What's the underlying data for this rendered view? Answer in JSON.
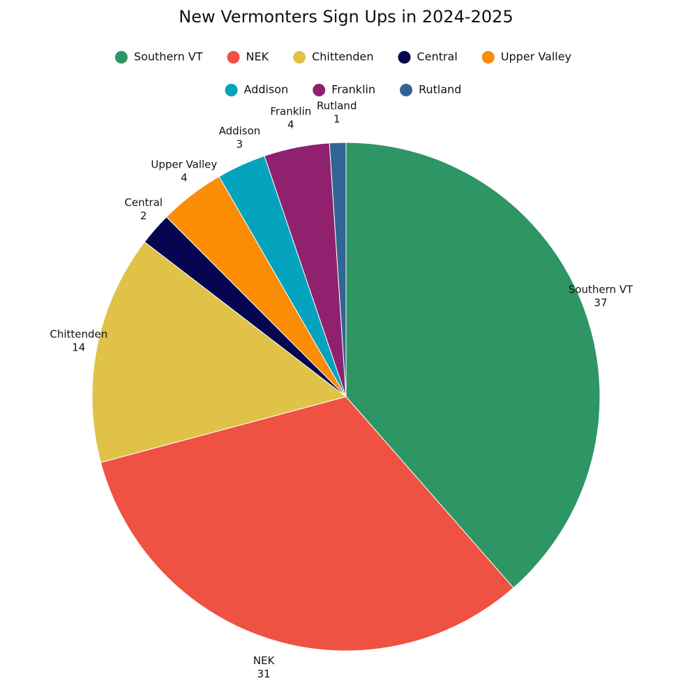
{
  "chart_data": {
    "type": "pie",
    "title": "New Vermonters Sign Ups in 2024-2025",
    "categories": [
      "Southern VT",
      "NEK",
      "Chittenden",
      "Central",
      "Upper Valley",
      "Addison",
      "Franklin",
      "Rutland"
    ],
    "values": [
      37,
      31,
      14,
      2,
      4,
      3,
      4,
      1
    ],
    "colors": [
      "#2e9565",
      "#ef5142",
      "#dfc247",
      "#05064f",
      "#fb8c06",
      "#03a3bd",
      "#8f216f",
      "#346493"
    ],
    "legend": "top"
  }
}
